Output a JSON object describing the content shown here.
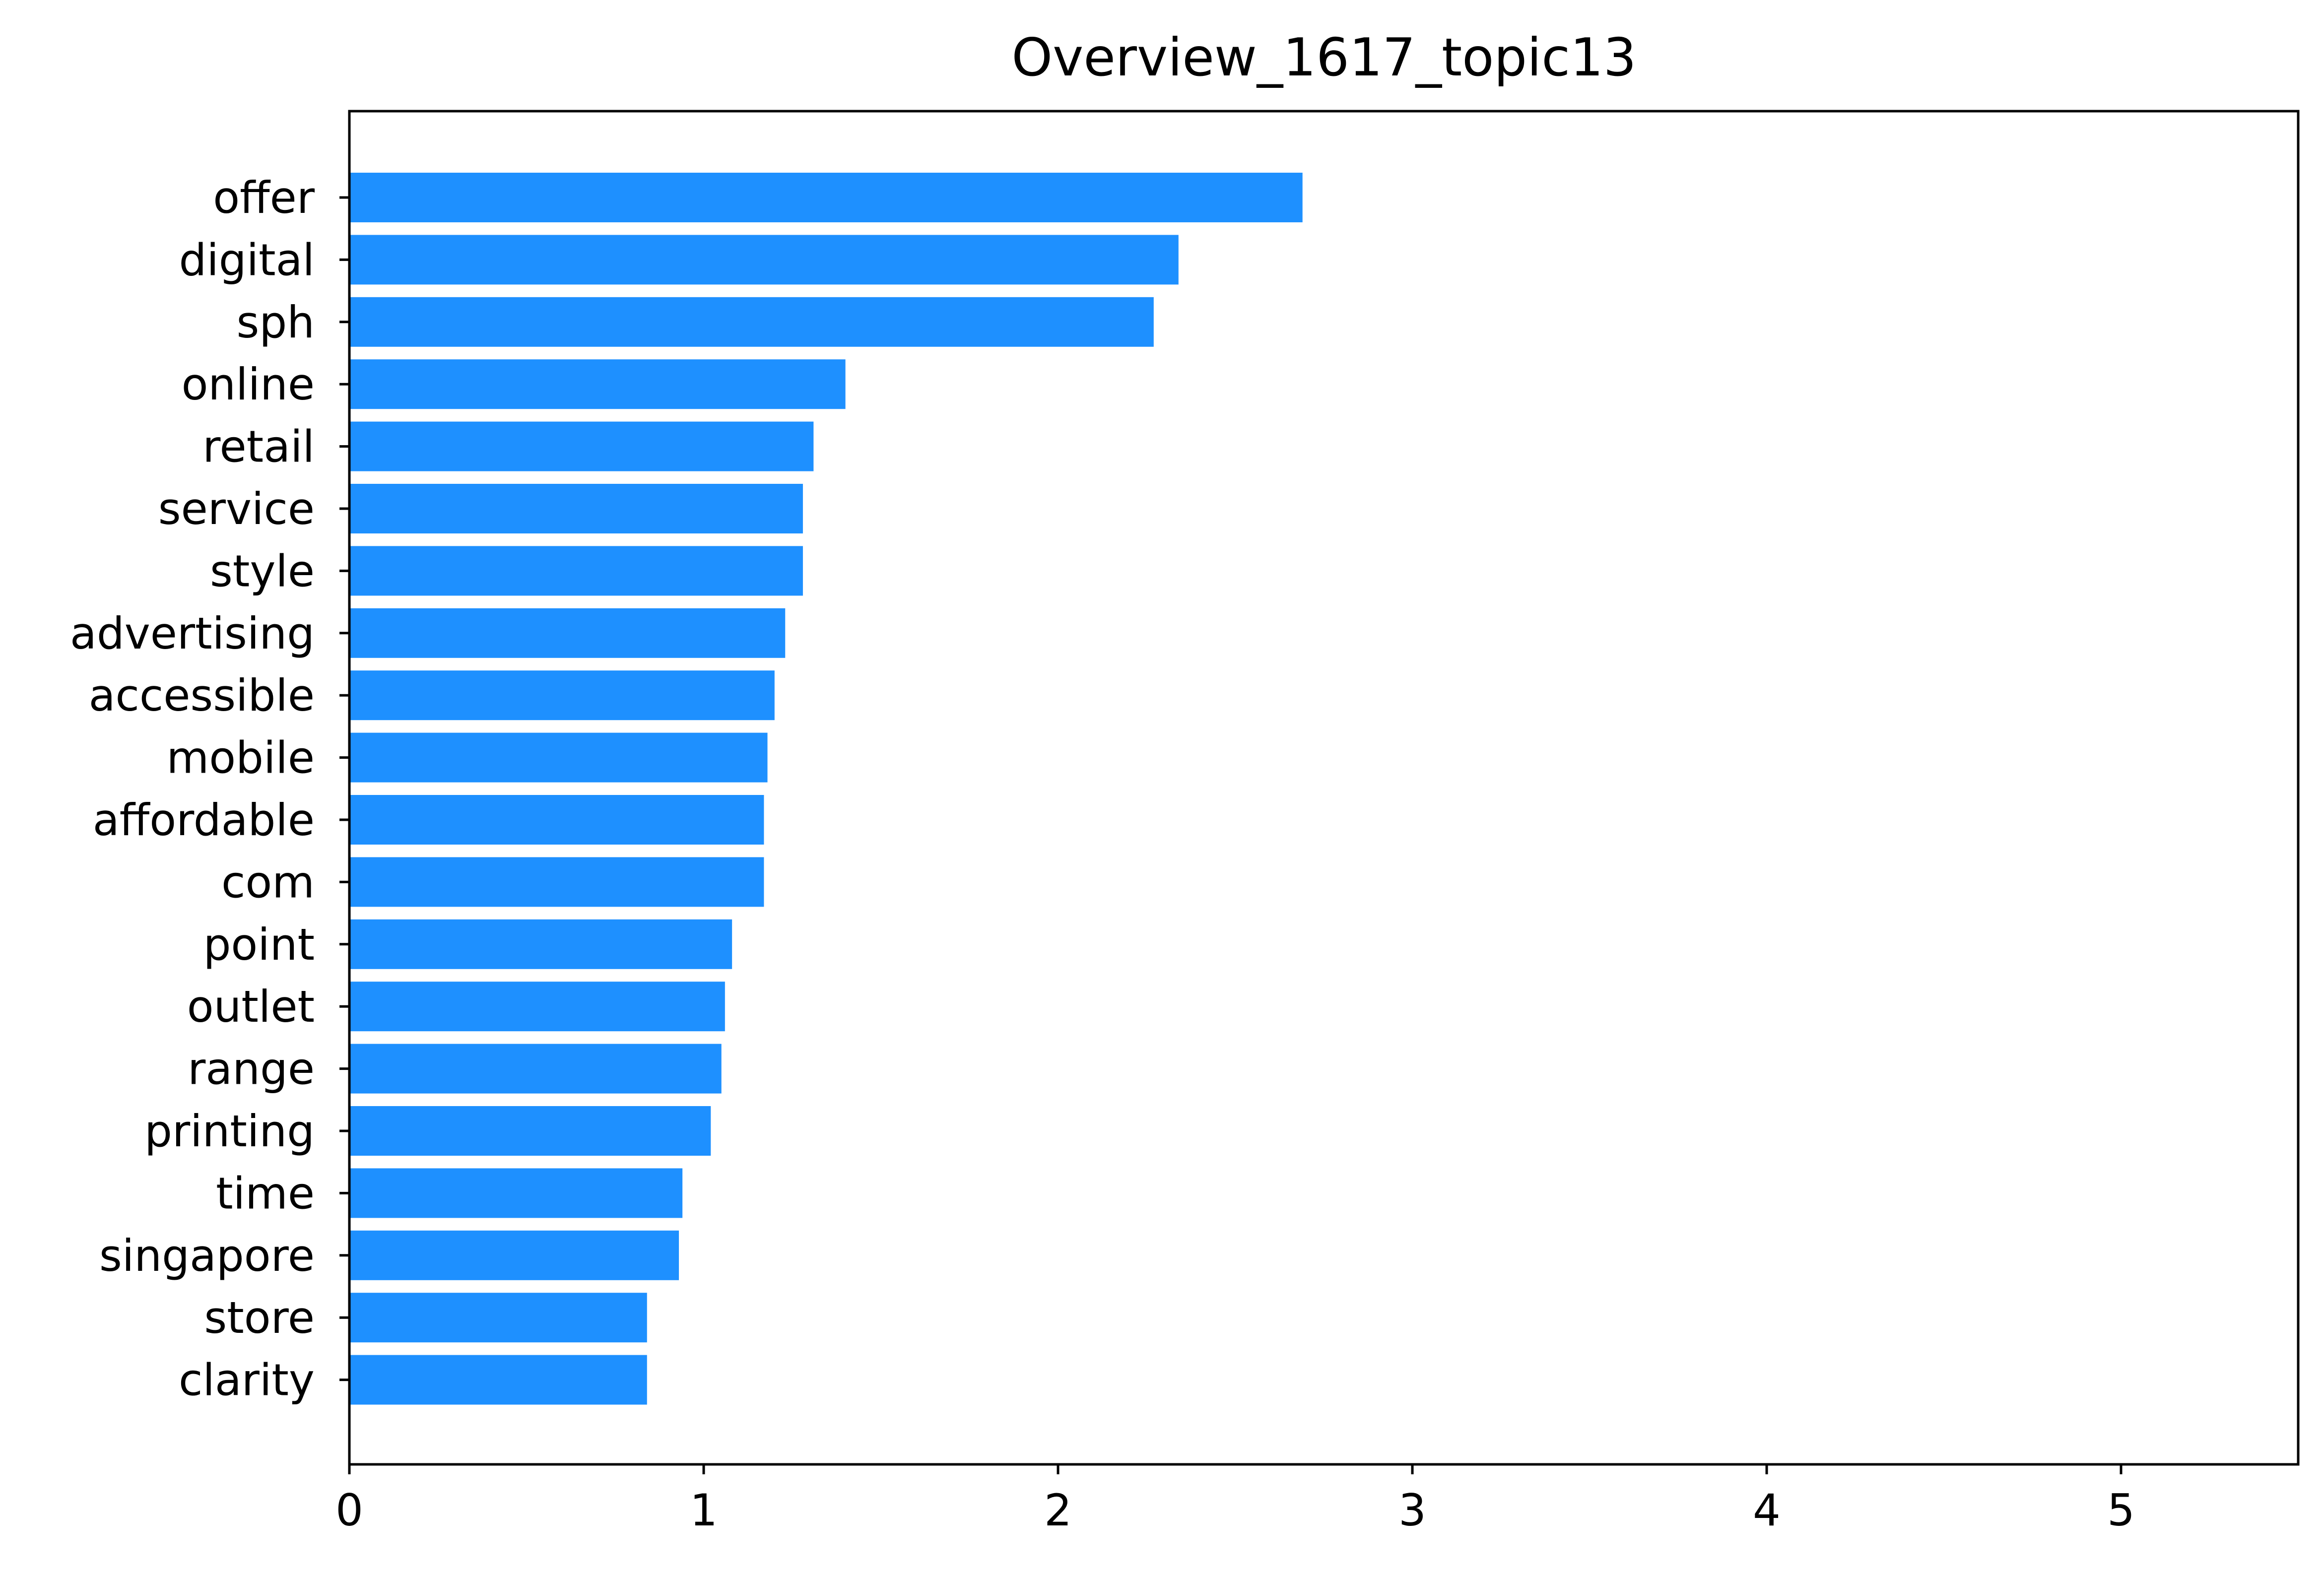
{
  "chart_data": {
    "type": "bar",
    "orientation": "horizontal",
    "title": "Overview_1617_topic13",
    "xlabel": "",
    "ylabel": "",
    "xlim": [
      0,
      5.5
    ],
    "x_ticks": [
      0,
      1,
      2,
      3,
      4,
      5
    ],
    "grid": false,
    "legend": "none",
    "bar_color": "#1e90ff",
    "categories": [
      "offer",
      "digital",
      "sph",
      "online",
      "retail",
      "service",
      "style",
      "advertising",
      "accessible",
      "mobile",
      "affordable",
      "com",
      "point",
      "outlet",
      "range",
      "printing",
      "time",
      "singapore",
      "store",
      "clarity"
    ],
    "values": [
      2.69,
      2.34,
      2.27,
      1.4,
      1.31,
      1.28,
      1.28,
      1.23,
      1.2,
      1.18,
      1.17,
      1.17,
      1.08,
      1.06,
      1.05,
      1.02,
      0.94,
      0.93,
      0.84,
      0.84
    ]
  }
}
